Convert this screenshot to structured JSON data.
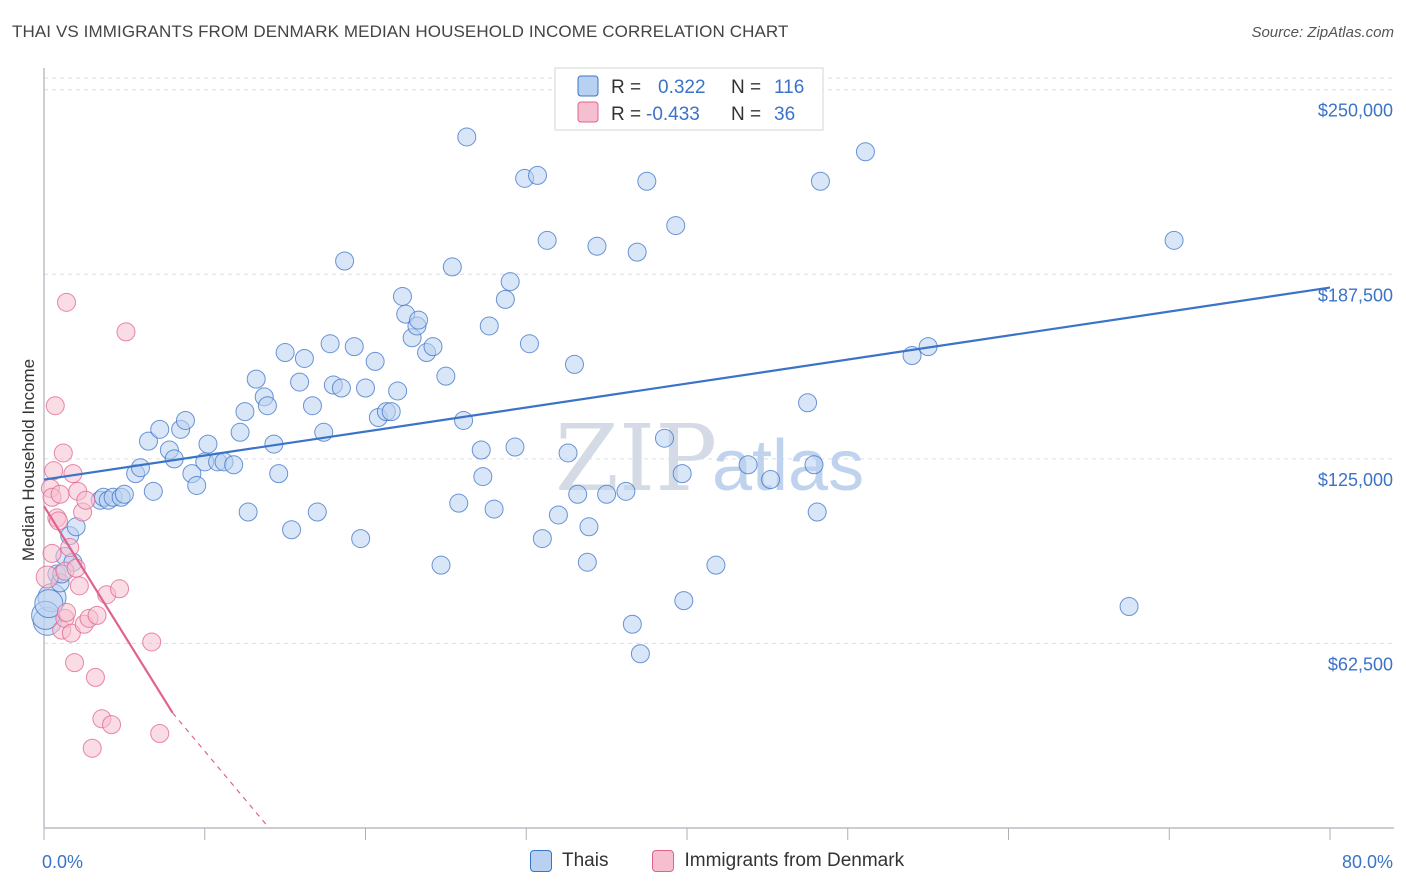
{
  "title": "THAI VS IMMIGRANTS FROM DENMARK MEDIAN HOUSEHOLD INCOME CORRELATION CHART",
  "source": "Source: ZipAtlas.com",
  "watermark": {
    "zip": "ZIP",
    "atlas": "atlas"
  },
  "colors": {
    "blue": "#3b73c8",
    "blue_fill": "#b9d1f1",
    "pink": "#e0628f",
    "pink_fill": "#f6bfd0",
    "grid": "#d9dde3"
  },
  "legend": {
    "rows": [
      {
        "r_label": "R =",
        "r_value": "0.322",
        "n_label": "N =",
        "n_value": "116"
      },
      {
        "r_label": "R =",
        "r_value": "-0.433",
        "n_label": "N =",
        "n_value": "36"
      }
    ]
  },
  "bottom_legend": {
    "series1": "Thais",
    "series2": "Immigrants from Denmark"
  },
  "chart_data": {
    "type": "scatter",
    "title": "THAI VS IMMIGRANTS FROM DENMARK MEDIAN HOUSEHOLD INCOME CORRELATION CHART",
    "xlabel": "",
    "ylabel": "Median Household Income",
    "xlim": [
      0,
      80
    ],
    "ylim": [
      0,
      256000
    ],
    "x_tick_labels": [
      "0.0%",
      "80.0%"
    ],
    "y_ticks": [
      62500,
      125000,
      187500,
      250000
    ],
    "y_tick_labels": [
      "$62,500",
      "$125,000",
      "$187,500",
      "$250,000"
    ],
    "grid": true,
    "series": [
      {
        "name": "Thais",
        "color": "#3b73c8",
        "trend": {
          "x0": 0,
          "y0": 118000,
          "x1": 80,
          "y1": 183000
        },
        "points": [
          [
            0.2,
            70000
          ],
          [
            0.5,
            78000
          ],
          [
            0.8,
            86000
          ],
          [
            1.0,
            83000
          ],
          [
            1.3,
            92000
          ],
          [
            1.6,
            99000
          ],
          [
            1.8,
            90000
          ],
          [
            2.0,
            102000
          ],
          [
            3.5,
            111000
          ],
          [
            3.7,
            112000
          ],
          [
            4.0,
            111000
          ],
          [
            4.3,
            112000
          ],
          [
            4.8,
            112000
          ],
          [
            5.0,
            113000
          ],
          [
            5.7,
            120000
          ],
          [
            6.0,
            122000
          ],
          [
            6.5,
            131000
          ],
          [
            6.8,
            114000
          ],
          [
            7.2,
            135000
          ],
          [
            7.8,
            128000
          ],
          [
            8.1,
            125000
          ],
          [
            8.5,
            135000
          ],
          [
            8.8,
            138000
          ],
          [
            9.2,
            120000
          ],
          [
            9.5,
            116000
          ],
          [
            10.0,
            124000
          ],
          [
            10.2,
            130000
          ],
          [
            10.8,
            124000
          ],
          [
            11.2,
            124000
          ],
          [
            11.8,
            123000
          ],
          [
            12.2,
            134000
          ],
          [
            12.5,
            141000
          ],
          [
            12.7,
            107000
          ],
          [
            13.2,
            152000
          ],
          [
            13.7,
            146000
          ],
          [
            13.9,
            143000
          ],
          [
            14.3,
            130000
          ],
          [
            14.6,
            120000
          ],
          [
            15.0,
            161000
          ],
          [
            15.4,
            101000
          ],
          [
            15.9,
            151000
          ],
          [
            16.2,
            159000
          ],
          [
            16.7,
            143000
          ],
          [
            17.0,
            107000
          ],
          [
            17.4,
            134000
          ],
          [
            17.8,
            164000
          ],
          [
            18.0,
            150000
          ],
          [
            18.5,
            149000
          ],
          [
            18.7,
            192000
          ],
          [
            19.3,
            163000
          ],
          [
            19.7,
            98000
          ],
          [
            20.0,
            149000
          ],
          [
            20.6,
            158000
          ],
          [
            20.8,
            139000
          ],
          [
            21.3,
            141000
          ],
          [
            21.6,
            141000
          ],
          [
            22.0,
            148000
          ],
          [
            22.3,
            180000
          ],
          [
            22.5,
            174000
          ],
          [
            22.9,
            166000
          ],
          [
            23.2,
            170000
          ],
          [
            23.3,
            172000
          ],
          [
            23.8,
            161000
          ],
          [
            24.2,
            163000
          ],
          [
            24.7,
            89000
          ],
          [
            25.0,
            153000
          ],
          [
            25.4,
            190000
          ],
          [
            25.8,
            110000
          ],
          [
            26.1,
            138000
          ],
          [
            26.3,
            234000
          ],
          [
            27.2,
            128000
          ],
          [
            27.3,
            119000
          ],
          [
            27.7,
            170000
          ],
          [
            28.0,
            108000
          ],
          [
            28.7,
            179000
          ],
          [
            29.0,
            185000
          ],
          [
            29.3,
            129000
          ],
          [
            29.9,
            220000
          ],
          [
            30.2,
            164000
          ],
          [
            30.7,
            221000
          ],
          [
            31.0,
            98000
          ],
          [
            31.3,
            199000
          ],
          [
            32.0,
            106000
          ],
          [
            32.6,
            127000
          ],
          [
            33.0,
            157000
          ],
          [
            33.2,
            113000
          ],
          [
            33.8,
            90000
          ],
          [
            33.9,
            102000
          ],
          [
            34.4,
            197000
          ],
          [
            35.0,
            113000
          ],
          [
            36.2,
            114000
          ],
          [
            36.6,
            69000
          ],
          [
            36.9,
            195000
          ],
          [
            37.1,
            59000
          ],
          [
            37.5,
            219000
          ],
          [
            38.6,
            132000
          ],
          [
            39.3,
            204000
          ],
          [
            39.7,
            120000
          ],
          [
            39.8,
            77000
          ],
          [
            41.8,
            89000
          ],
          [
            43.8,
            123000
          ],
          [
            45.2,
            118000
          ],
          [
            47.5,
            144000
          ],
          [
            47.9,
            123000
          ],
          [
            48.1,
            107000
          ],
          [
            48.3,
            219000
          ],
          [
            51.1,
            229000
          ],
          [
            54.0,
            160000
          ],
          [
            55.0,
            163000
          ],
          [
            67.5,
            75000
          ],
          [
            70.3,
            199000
          ],
          [
            0.1,
            72000
          ],
          [
            0.3,
            76000
          ],
          [
            1.1,
            86000
          ]
        ]
      },
      {
        "name": "Immigrants from Denmark",
        "color": "#e0628f",
        "trend": {
          "x0": 0,
          "y0": 109000,
          "x1": 8,
          "y1": 39000,
          "dash_to_x": 14
        },
        "points": [
          [
            0.2,
            85000
          ],
          [
            0.4,
            115000
          ],
          [
            0.5,
            112000
          ],
          [
            0.6,
            121000
          ],
          [
            0.7,
            143000
          ],
          [
            0.8,
            105000
          ],
          [
            0.9,
            104000
          ],
          [
            1.0,
            113000
          ],
          [
            1.1,
            67000
          ],
          [
            1.2,
            127000
          ],
          [
            1.3,
            71000
          ],
          [
            1.3,
            87000
          ],
          [
            1.4,
            73000
          ],
          [
            1.4,
            178000
          ],
          [
            1.6,
            95000
          ],
          [
            1.7,
            66000
          ],
          [
            1.8,
            120000
          ],
          [
            1.9,
            56000
          ],
          [
            2.0,
            88000
          ],
          [
            2.1,
            114000
          ],
          [
            2.2,
            82000
          ],
          [
            2.4,
            107000
          ],
          [
            2.5,
            69000
          ],
          [
            2.6,
            111000
          ],
          [
            2.8,
            71000
          ],
          [
            3.0,
            27000
          ],
          [
            3.2,
            51000
          ],
          [
            3.3,
            72000
          ],
          [
            3.6,
            37000
          ],
          [
            3.9,
            79000
          ],
          [
            4.2,
            35000
          ],
          [
            4.7,
            81000
          ],
          [
            5.1,
            168000
          ],
          [
            6.7,
            63000
          ],
          [
            7.2,
            32000
          ],
          [
            0.5,
            93000
          ]
        ]
      }
    ]
  }
}
